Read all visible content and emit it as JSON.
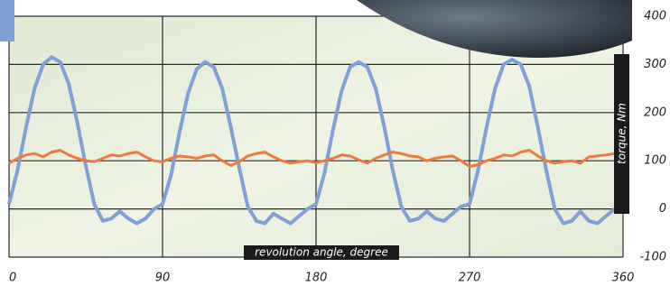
{
  "chart_data": {
    "type": "line",
    "x_label": "revolution angle, degree",
    "y_label": "torque, Nm",
    "x": [
      0,
      5,
      10,
      15,
      20,
      25,
      30,
      35,
      40,
      45,
      50,
      55,
      60,
      65,
      70,
      75,
      80,
      85,
      90,
      95,
      100,
      105,
      110,
      115,
      120,
      125,
      130,
      135,
      140,
      145,
      150,
      155,
      160,
      165,
      170,
      175,
      180,
      185,
      190,
      195,
      200,
      205,
      210,
      215,
      220,
      225,
      230,
      235,
      240,
      245,
      250,
      255,
      260,
      265,
      270,
      275,
      280,
      285,
      290,
      295,
      300,
      305,
      310,
      315,
      320,
      325,
      330,
      335,
      340,
      345,
      350,
      355,
      360
    ],
    "series": [
      {
        "color": "#7fa0d8",
        "values": [
          10,
          80,
          170,
          250,
          300,
          315,
          305,
          260,
          180,
          90,
          10,
          -25,
          -20,
          -5,
          -20,
          -30,
          -20,
          0,
          10,
          70,
          160,
          240,
          290,
          305,
          295,
          250,
          170,
          85,
          5,
          -25,
          -30,
          -10,
          -20,
          -30,
          -15,
          0,
          10,
          75,
          165,
          245,
          295,
          305,
          295,
          250,
          170,
          80,
          5,
          -25,
          -20,
          -5,
          -20,
          -25,
          -10,
          5,
          10,
          80,
          170,
          250,
          300,
          310,
          300,
          255,
          170,
          80,
          0,
          -30,
          -25,
          -5,
          -25,
          -30,
          -15,
          0,
          -5
        ]
      },
      {
        "color": "#f07a3c",
        "values": [
          95,
          105,
          112,
          115,
          108,
          118,
          122,
          112,
          105,
          100,
          98,
          105,
          112,
          110,
          115,
          118,
          108,
          100,
          98,
          105,
          110,
          108,
          105,
          110,
          112,
          100,
          90,
          98,
          110,
          115,
          118,
          108,
          100,
          95,
          98,
          100,
          96,
          100,
          105,
          112,
          110,
          102,
          95,
          105,
          112,
          118,
          115,
          110,
          108,
          100,
          105,
          108,
          110,
          100,
          88,
          92,
          100,
          105,
          112,
          110,
          118,
          122,
          110,
          100,
          95,
          98,
          100,
          95,
          108,
          110,
          112,
          115,
          115
        ]
      }
    ],
    "xlim": [
      0,
      360
    ],
    "xticks": [
      0,
      90,
      180,
      270,
      360
    ],
    "ylim": [
      -100,
      400
    ],
    "yticks": [
      -100,
      0,
      100,
      200,
      300,
      400
    ],
    "grid": true
  }
}
